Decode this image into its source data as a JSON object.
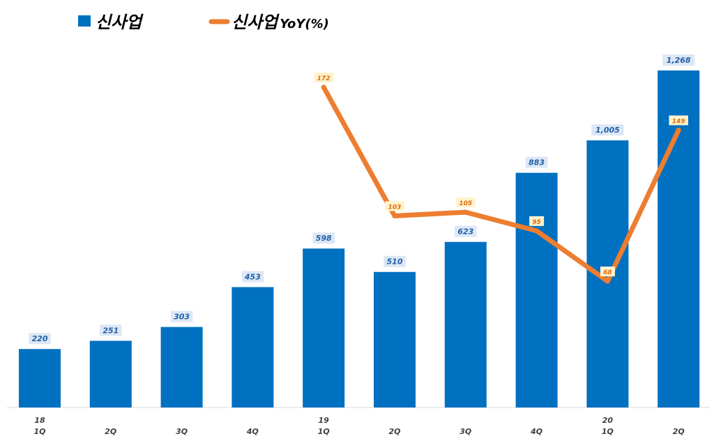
{
  "chart_data": {
    "type": "bar",
    "x_ticks": [
      [
        "18",
        "1Q"
      ],
      [
        "",
        "2Q"
      ],
      [
        "",
        "3Q"
      ],
      [
        "",
        "4Q"
      ],
      [
        "19",
        "1Q"
      ],
      [
        "",
        "2Q"
      ],
      [
        "",
        "3Q"
      ],
      [
        "",
        "4Q"
      ],
      [
        "20",
        "1Q"
      ],
      [
        "",
        "2Q"
      ]
    ],
    "series": [
      {
        "name": "신사업",
        "type": "bar",
        "color": "#0070c0",
        "values": [
          220,
          251,
          303,
          453,
          598,
          510,
          623,
          883,
          1005,
          1268
        ],
        "labels": [
          "220",
          "251",
          "303",
          "453",
          "598",
          "510",
          "623",
          "883",
          "1,005",
          "1,268"
        ]
      },
      {
        "name": "신사업 YoY(%)",
        "legend_parts": [
          "신사업",
          "YoY(%)"
        ],
        "type": "line",
        "color": "#ed7d31",
        "values": [
          null,
          null,
          null,
          null,
          172,
          103,
          105,
          95,
          68,
          149
        ],
        "labels": [
          null,
          null,
          null,
          null,
          "172",
          "103",
          "105",
          "95",
          "68",
          "149"
        ]
      }
    ],
    "grid": false,
    "legend_position": "top-left"
  }
}
